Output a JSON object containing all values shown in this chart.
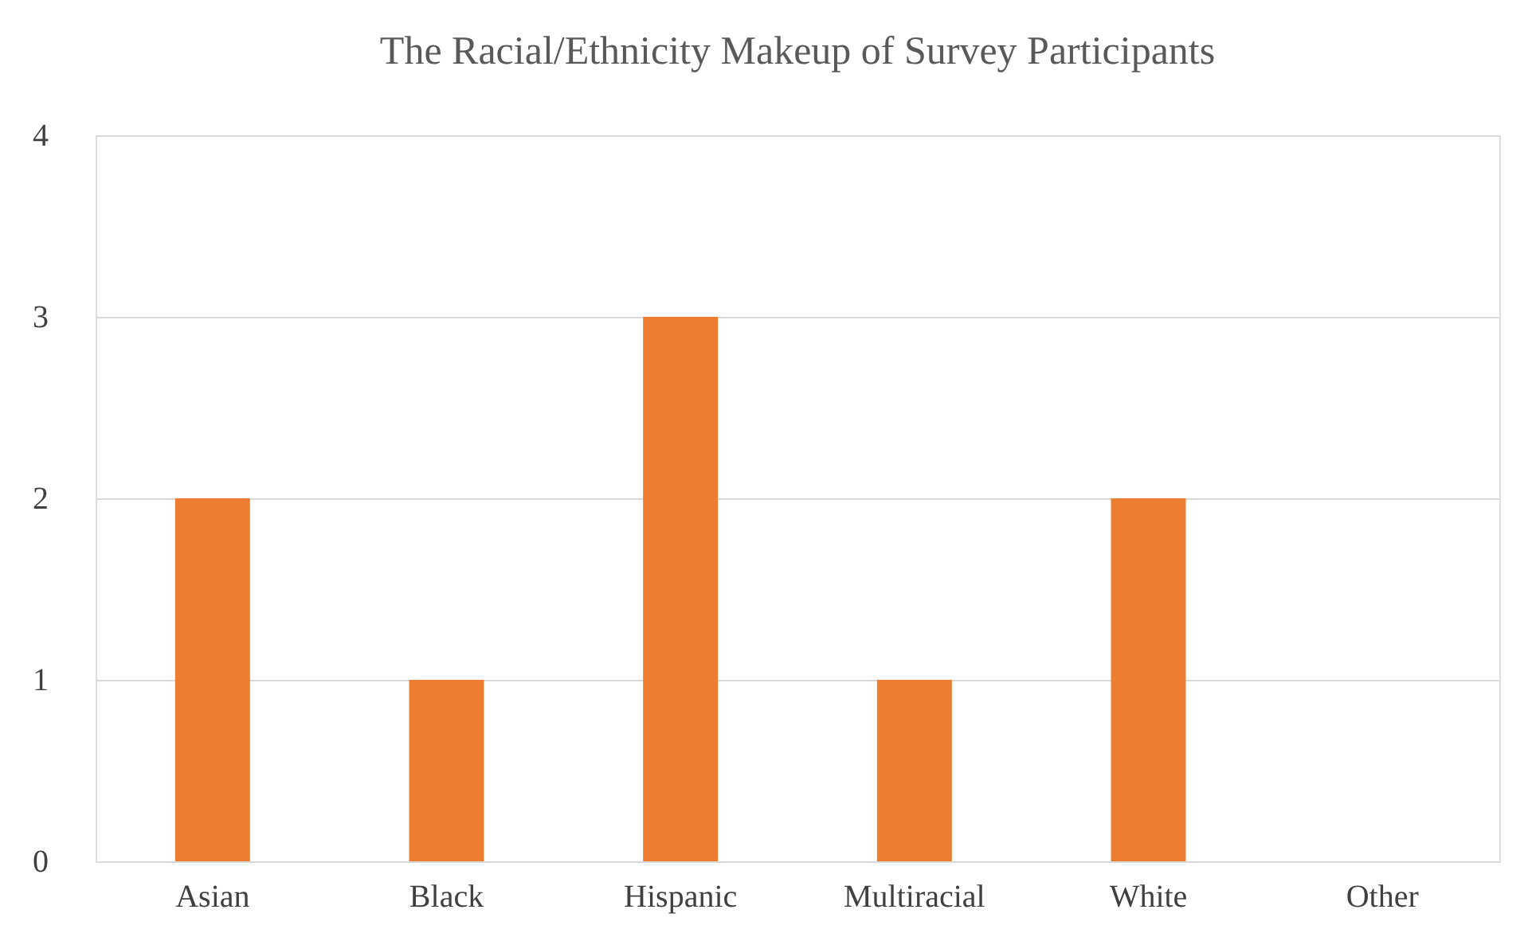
{
  "chart_data": {
    "type": "bar",
    "title": "The Racial/Ethnicity Makeup of Survey Participants",
    "categories": [
      "Asian",
      "Black",
      "Hispanic",
      "Multiracial",
      "White",
      "Other"
    ],
    "values": [
      2,
      1,
      3,
      1,
      2,
      0
    ],
    "color": "#ed7d31",
    "ylim": [
      0,
      4
    ],
    "yticks": [
      0,
      1,
      2,
      3,
      4
    ],
    "grid": "y"
  }
}
